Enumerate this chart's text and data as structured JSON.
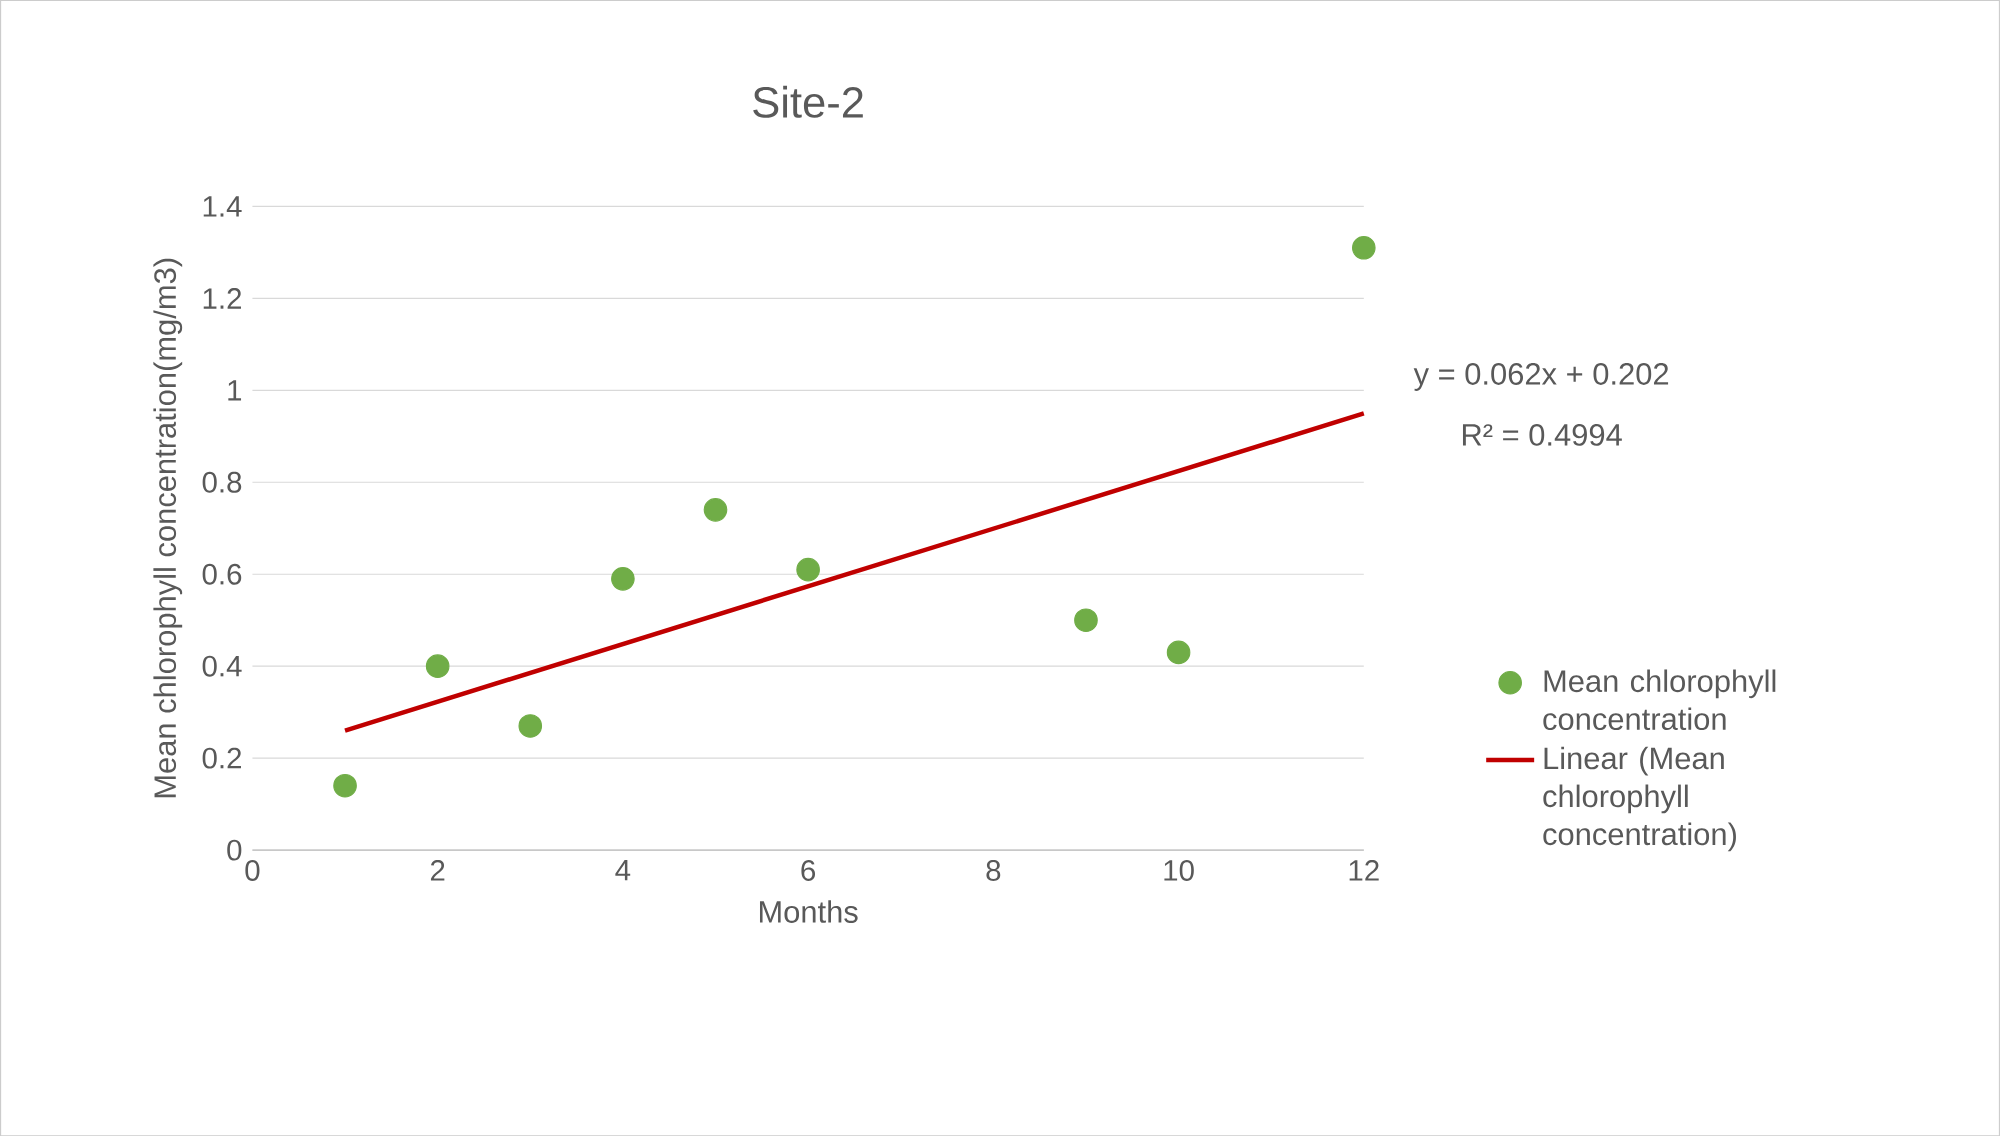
{
  "chart_data": {
    "type": "scatter",
    "title": "Site-2",
    "xlabel": "Months",
    "ylabel": "Mean chlorophyll concentration(mg/m3)",
    "series": [
      {
        "name": "Mean chlorophyll concentration",
        "color": "#70ad47",
        "marker": "circle",
        "x": [
          1,
          2,
          3,
          4,
          5,
          6,
          9,
          10,
          12
        ],
        "values": [
          0.14,
          0.4,
          0.27,
          0.59,
          0.74,
          0.61,
          0.5,
          0.43,
          1.31
        ]
      },
      {
        "name": "Linear (Mean chlorophyll concentration)",
        "type": "line",
        "color": "#c00000",
        "marker": "none",
        "line_style": "solid",
        "x": [
          1,
          12
        ],
        "values": [
          0.26,
          0.95
        ]
      }
    ],
    "annotations": [
      "y = 0.062x + 0.202",
      "R² = 0.4994"
    ],
    "xlim": [
      0,
      12
    ],
    "xticks": [
      0,
      2,
      4,
      6,
      8,
      10,
      12
    ],
    "ylim": [
      0,
      1.4
    ],
    "yticks": [
      0,
      0.2,
      0.4,
      0.6,
      0.8,
      1,
      1.2,
      1.4
    ],
    "grid": "y",
    "legend": "right"
  }
}
